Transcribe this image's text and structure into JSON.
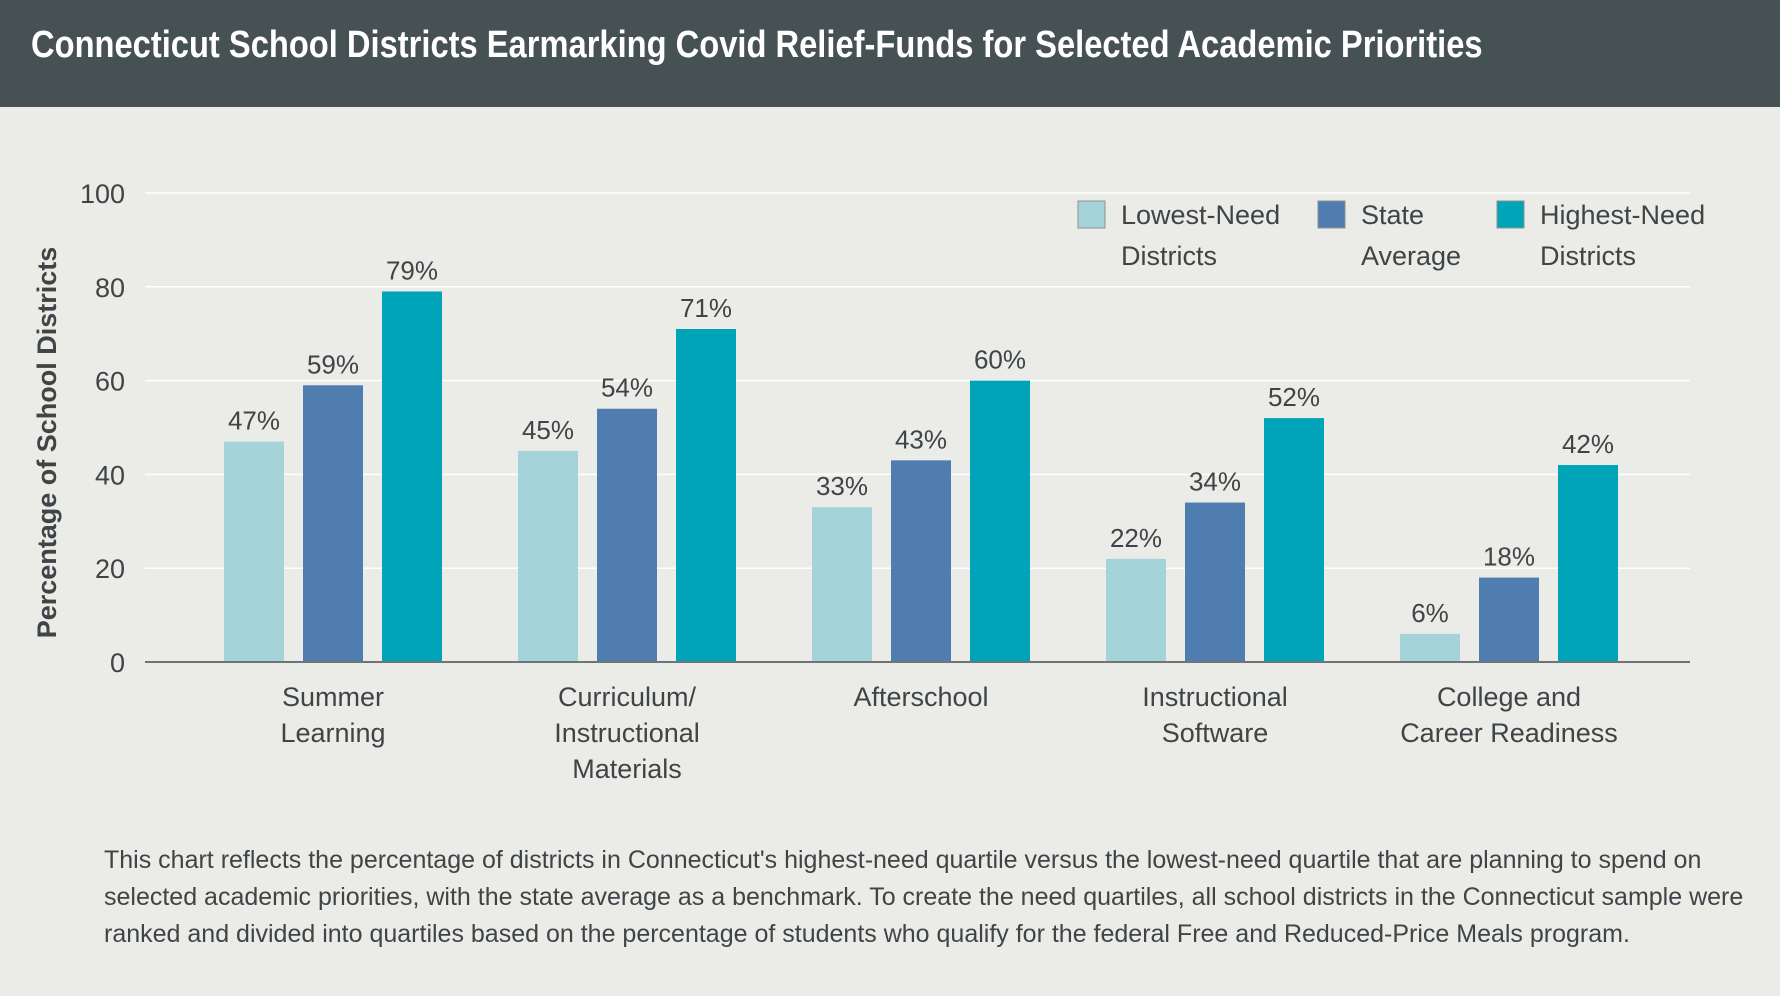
{
  "title": "Connecticut School Districts Earmarking Covid Relief-Funds for Selected Academic Priorities",
  "footnote": {
    "lines": [
      "This chart reflects the percentage of districts in Connecticut's highest-need quartile versus the lowest-need quartile that are planning to spend on",
      "selected academic priorities, with the state average as a benchmark. To create the need quartiles, all school districts in the Connecticut sample were",
      "ranked and divided into quartiles based on the percentage of students who qualify for the federal Free and Reduced-Price Meals program."
    ]
  },
  "chart_data": {
    "type": "bar",
    "ylabel": "Percentage of School Districts",
    "xlabel": "",
    "ylim": [
      0,
      100
    ],
    "yticks": [
      0,
      20,
      40,
      60,
      80,
      100
    ],
    "grid": true,
    "legend_position": "top-right",
    "categories": [
      [
        "Summer",
        "Learning"
      ],
      [
        "Curriculum/",
        "Instructional",
        "Materials"
      ],
      [
        "Afterschool"
      ],
      [
        "Instructional",
        "Software"
      ],
      [
        "College and",
        "Career Readiness"
      ]
    ],
    "series": [
      {
        "name": [
          "Lowest-Need",
          "Districts"
        ],
        "color": "#a5d3da",
        "values": [
          47,
          45,
          33,
          22,
          6
        ],
        "labels": [
          "47%",
          "45%",
          "33%",
          "22%",
          "6%"
        ]
      },
      {
        "name": [
          "State",
          "Average"
        ],
        "color": "#507daf",
        "values": [
          59,
          54,
          43,
          34,
          18
        ],
        "labels": [
          "59%",
          "54%",
          "43%",
          "34%",
          "18%"
        ]
      },
      {
        "name": [
          "Highest-Need",
          "Districts"
        ],
        "color": "#00a4b9",
        "values": [
          79,
          71,
          60,
          52,
          42
        ],
        "labels": [
          "79%",
          "71%",
          "60%",
          "52%",
          "42%"
        ]
      }
    ]
  }
}
